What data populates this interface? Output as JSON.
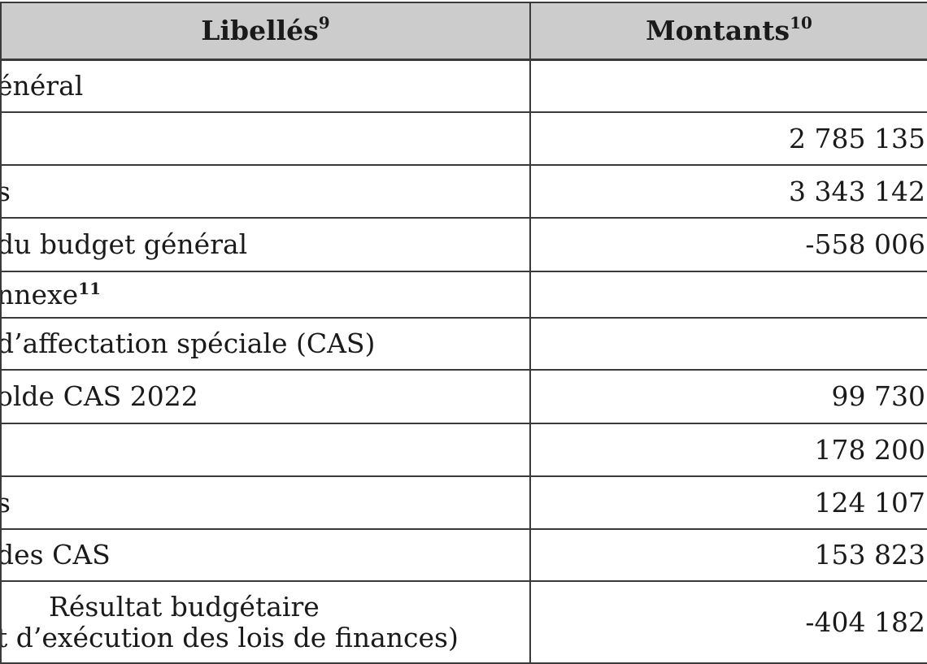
{
  "header": {
    "label_col": "Libellés",
    "label_note": "9",
    "amount_col": "Montants",
    "amount_note": "10"
  },
  "rows": [
    {
      "label": "énéral",
      "amount": ""
    },
    {
      "label": "",
      "amount": "2 785 135"
    },
    {
      "label": "s",
      "amount": "3 343 142"
    },
    {
      "label": "du budget général",
      "amount": "-558 006"
    },
    {
      "label": "nnexe",
      "note": "11",
      "amount": ""
    },
    {
      "label": "d’affectation spéciale (CAS)",
      "amount": ""
    },
    {
      "label": "olde CAS 2022",
      "amount": "99 730"
    },
    {
      "label": "",
      "amount": "178 200"
    },
    {
      "label": "s",
      "amount": "124 107"
    },
    {
      "label": "des CAS",
      "amount": "153 823"
    },
    {
      "label_line1": "Résultat budgétaire",
      "label_line2": "t d’exécution des lois de finances)",
      "amount": "-404 182"
    }
  ]
}
